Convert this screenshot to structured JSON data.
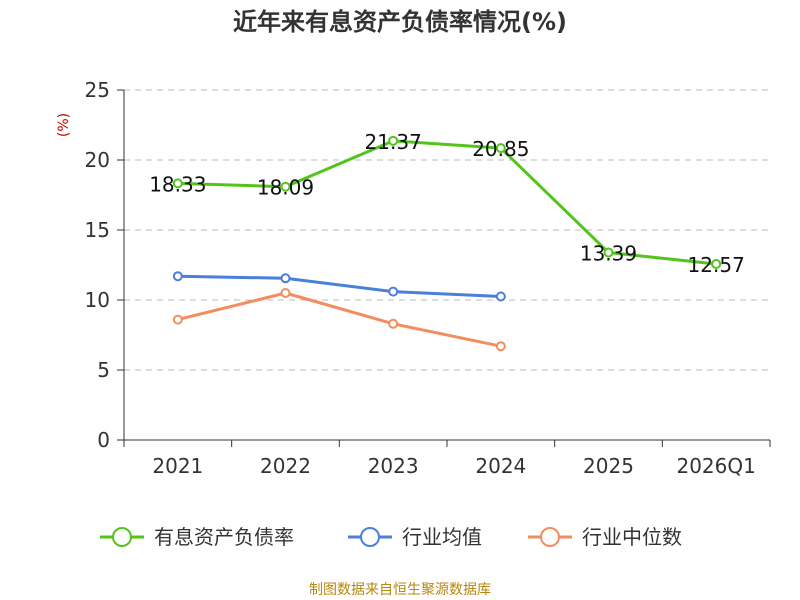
{
  "chart_data": {
    "type": "line",
    "title": "近年来有息资产负债率情况(%)",
    "ylabel": "(%)",
    "ylim": [
      0,
      25
    ],
    "yticks": [
      0,
      5,
      10,
      15,
      20,
      25
    ],
    "grid": true,
    "categories": [
      "2021",
      "2022",
      "2023",
      "2024",
      "2025",
      "2026Q1"
    ],
    "series": [
      {
        "name": "有息资产负债率",
        "color": "#52c41a",
        "values": [
          18.33,
          18.09,
          21.37,
          20.85,
          13.39,
          12.57
        ],
        "show_labels": true
      },
      {
        "name": "行业均值",
        "color": "#4a7fdc",
        "values": [
          11.7,
          11.55,
          10.6,
          10.25,
          null,
          null
        ],
        "show_labels": false
      },
      {
        "name": "行业中位数",
        "color": "#f38c5e",
        "values": [
          8.6,
          10.5,
          8.3,
          6.7,
          null,
          null
        ],
        "show_labels": false
      }
    ],
    "legend_position": "bottom",
    "source": "制图数据来自恒生聚源数据库"
  }
}
